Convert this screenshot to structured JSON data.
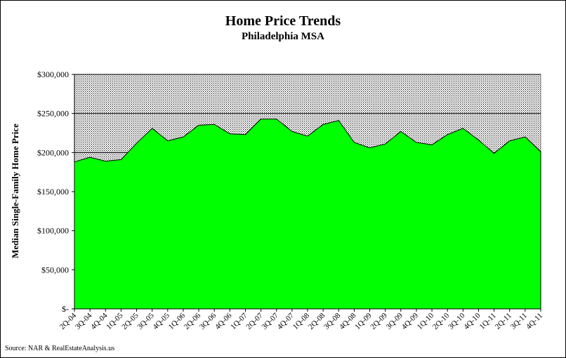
{
  "chart_data": {
    "type": "area",
    "title": "Home Price Trends",
    "subtitle": "Philadelphia MSA",
    "ylabel": "Median Single-Family Home Price",
    "xlabel": "",
    "source": "Source: NAR & RealEstateAnalysis.us",
    "ylim": [
      0,
      300000
    ],
    "yticks": [
      0,
      50000,
      100000,
      150000,
      200000,
      250000,
      300000
    ],
    "ytick_labels": [
      "$-",
      "$50,000",
      "$100,000",
      "$150,000",
      "$200,000",
      "$250,000",
      "$300,000"
    ],
    "grid": true,
    "legend": "none",
    "colors": {
      "area_fill": "#00ff00",
      "plot_bg": "#c0c0c0",
      "line": "#000000"
    },
    "categories": [
      "2Q-04",
      "3Q-04",
      "4Q-04",
      "1Q-05",
      "2Q-05",
      "3Q-05",
      "4Q-05",
      "1Q-06",
      "2Q-06",
      "3Q-06",
      "4Q-06",
      "1Q-07",
      "2Q-07",
      "3Q-07",
      "4Q-07",
      "1Q-08",
      "2Q-08",
      "3Q-08",
      "4Q-08",
      "1Q-09",
      "2Q-09",
      "3Q-09",
      "4Q-09",
      "1Q-10",
      "2Q-10",
      "3Q-10",
      "4Q-10",
      "1Q-11",
      "2Q-11",
      "3Q-11",
      "4Q-11"
    ],
    "values": [
      188000,
      194000,
      189000,
      191000,
      212000,
      231000,
      215000,
      220000,
      235000,
      236000,
      224000,
      223000,
      243000,
      243000,
      227000,
      221000,
      236000,
      241000,
      213000,
      206000,
      211000,
      227000,
      213000,
      210000,
      223000,
      231000,
      216000,
      199000,
      215000,
      220000,
      201000
    ]
  }
}
